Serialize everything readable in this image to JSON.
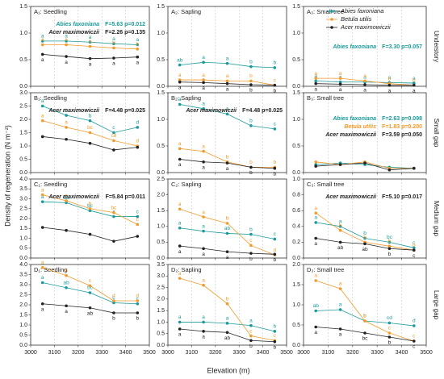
{
  "figure": {
    "ylabel": "Density of regeneration (N m⁻²)",
    "xlabel": "Elevation (m)",
    "row_labels": [
      "Understory",
      "Small gap",
      "Medium gap",
      "Large gap"
    ],
    "legend": [
      {
        "name": "Abies faxoniana",
        "color": "#1a9a9a"
      },
      {
        "name": "Betula utilis",
        "color": "#f39a2b"
      },
      {
        "name": "Acer maximowiczii",
        "color": "#222222"
      }
    ]
  },
  "chart_data": [
    {
      "type": "line",
      "title": "A₁: Seedling",
      "x": [
        3050,
        3150,
        3250,
        3350,
        3450
      ],
      "xlim": [
        3000,
        3500
      ],
      "xticks": [
        3000,
        3100,
        3200,
        3300,
        3400,
        3500
      ],
      "ylim": [
        0,
        1.5
      ],
      "yticks": [
        {
          "value": 0,
          "label": "0.0"
        },
        0.5,
        {
          "value": 1,
          "label": "1.0"
        },
        1.5
      ],
      "grid": true,
      "series": [
        {
          "values": [
            0.85,
            0.85,
            0.83,
            0.8,
            0.78
          ],
          "letters": [
            "a",
            "a",
            "a",
            "a",
            "a"
          ]
        },
        {
          "values": [
            0.78,
            0.78,
            0.75,
            0.72,
            0.7
          ],
          "letters": [
            "a",
            "a",
            "a",
            "b",
            "b"
          ]
        },
        {
          "values": [
            0.6,
            0.56,
            0.52,
            0.53,
            0.55
          ],
          "letters": [
            "a",
            "a",
            "a",
            "a",
            "a"
          ]
        }
      ],
      "stats": [
        {
          "name": "Abies faxoniana",
          "text": "F=5.63 p=0.012"
        },
        {
          "name": "Acer maximowiczii",
          "text": "F=2.26 p=0.135"
        }
      ]
    },
    {
      "type": "line",
      "title": "A₂: Sapling",
      "x": [
        3050,
        3150,
        3250,
        3350,
        3450
      ],
      "xlim": [
        3000,
        3500
      ],
      "xticks": [
        3000,
        3100,
        3200,
        3300,
        3400,
        3500
      ],
      "ylim": [
        0,
        1.5
      ],
      "yticks": [
        {
          "value": 0,
          "label": "0.0"
        },
        0.5,
        {
          "value": 1,
          "label": "1.0"
        },
        1.5
      ],
      "grid": true,
      "series": [
        {
          "values": [
            0.4,
            0.45,
            0.43,
            0.37,
            0.35
          ],
          "letters": [
            "ab",
            "a",
            "a",
            "b",
            "b"
          ]
        },
        {
          "values": [
            0.12,
            0.12,
            0.1,
            0.1,
            0.02
          ],
          "letters": [
            "a",
            "a",
            "a",
            "b",
            "c"
          ]
        },
        {
          "values": [
            0.08,
            0.07,
            0.05,
            0.03,
            0.02
          ],
          "letters": [
            "a",
            "a",
            "a",
            "b",
            "b"
          ]
        }
      ]
    },
    {
      "type": "line",
      "title": "A₃: Small tree",
      "x": [
        3050,
        3150,
        3250,
        3350,
        3450
      ],
      "xlim": [
        3000,
        3500
      ],
      "xticks": [
        3000,
        3100,
        3200,
        3300,
        3400,
        3500
      ],
      "ylim": [
        0,
        1.5
      ],
      "yticks": [
        {
          "value": 0,
          "label": "0.0"
        },
        0.5,
        {
          "value": 1,
          "label": "1.0"
        },
        1.5
      ],
      "grid": true,
      "series": [
        {
          "values": [
            0.1,
            0.08,
            0.08,
            0.07,
            0.06
          ],
          "letters": [
            "a",
            "a",
            "a",
            "a",
            "a"
          ]
        },
        {
          "values": [
            0.15,
            0.15,
            0.1,
            0.05,
            0.02
          ],
          "letters": [
            "a",
            "a",
            "a",
            "b",
            "b"
          ]
        },
        {
          "values": [
            0.05,
            0.04,
            0.03,
            0.02,
            0.02
          ],
          "letters": [
            "a",
            "a",
            "a",
            "a",
            "a"
          ]
        }
      ],
      "stats": [
        {
          "name": "Abies faxoniana",
          "text": "F=3.30 p=0.057"
        }
      ]
    },
    {
      "type": "line",
      "title": "B₁: Seedling",
      "x": [
        3050,
        3150,
        3250,
        3350,
        3450
      ],
      "xlim": [
        3000,
        3500
      ],
      "xticks": [
        3000,
        3100,
        3200,
        3300,
        3400,
        3500
      ],
      "ylim": [
        0,
        3
      ],
      "yticks": [
        {
          "value": 0,
          "label": "0.0"
        },
        0.5,
        {
          "value": 1,
          "label": "1.0"
        },
        1.5,
        {
          "value": 2,
          "label": "2.0"
        },
        2.5,
        {
          "value": 3,
          "label": "3.0"
        }
      ],
      "grid": true,
      "series": [
        {
          "values": [
            2.5,
            2.15,
            1.95,
            1.5,
            1.7
          ],
          "letters": [
            "a",
            "b",
            "b",
            "c",
            "d"
          ]
        },
        {
          "values": [
            1.95,
            1.7,
            1.5,
            1.2,
            1.0
          ],
          "letters": [
            "a",
            "a",
            "bc",
            "cd",
            "d"
          ]
        },
        {
          "values": [
            1.35,
            1.25,
            1.1,
            0.85,
            0.95
          ]
        }
      ],
      "stats": [
        {
          "name": "Acer maximowiczii",
          "text": "F=4.48 p=0.025"
        }
      ]
    },
    {
      "type": "line",
      "title": "B₂: Sapling",
      "x": [
        3050,
        3150,
        3250,
        3350,
        3450
      ],
      "xlim": [
        3000,
        3500
      ],
      "xticks": [
        3000,
        3100,
        3200,
        3300,
        3400,
        3500
      ],
      "ylim": [
        0,
        1.5
      ],
      "yticks": [
        {
          "value": 0,
          "label": "0.0"
        },
        0.5,
        {
          "value": 1,
          "label": "1.0"
        },
        1.5
      ],
      "grid": true,
      "series": [
        {
          "values": [
            1.28,
            1.2,
            1.1,
            0.88,
            0.82
          ],
          "letters": [
            "a",
            "a",
            "a",
            "b",
            "c"
          ]
        },
        {
          "values": [
            0.45,
            0.4,
            0.2,
            0.1,
            0.1
          ],
          "letters": [
            "a",
            "a",
            "b",
            "b",
            "b"
          ]
        },
        {
          "values": [
            0.25,
            0.2,
            0.18,
            0.1,
            0.08
          ],
          "letters": [
            "a",
            "a",
            "a",
            "b",
            "b"
          ]
        }
      ],
      "stats": [
        {
          "name": "Acer maximowiczii",
          "text": "F=4.48 p=0.025"
        }
      ]
    },
    {
      "type": "line",
      "title": "B₃: Small tree",
      "x": [
        3050,
        3150,
        3250,
        3350,
        3450
      ],
      "xlim": [
        3000,
        3500
      ],
      "xticks": [
        3000,
        3100,
        3200,
        3300,
        3400,
        3500
      ],
      "ylim": [
        0,
        1.5
      ],
      "yticks": [
        {
          "value": 0,
          "label": "0.0"
        },
        0.5,
        {
          "value": 1,
          "label": "1.0"
        },
        1.5
      ],
      "grid": true,
      "series": [
        {
          "values": [
            0.15,
            0.18,
            0.15,
            0.1,
            0.08
          ]
        },
        {
          "values": [
            0.2,
            0.15,
            0.2,
            0.08,
            0.08
          ]
        },
        {
          "values": [
            0.12,
            0.15,
            0.18,
            0.05,
            0.08
          ]
        }
      ],
      "stats": [
        {
          "name": "Abies faxoniana",
          "text": "F=2.63 p=0.098"
        },
        {
          "name": "Betula utilis",
          "text": "F=1.83 p=0.200"
        },
        {
          "name": "Acer maximowiczii",
          "text": "F=3.59 p=0.050"
        }
      ]
    },
    {
      "type": "line",
      "title": "C₁: Seedling",
      "x": [
        3050,
        3150,
        3250,
        3350,
        3450
      ],
      "xlim": [
        3000,
        3500
      ],
      "xticks": [
        3000,
        3100,
        3200,
        3300,
        3400,
        3500
      ],
      "ylim": [
        0,
        4
      ],
      "yticks": [
        {
          "value": 0,
          "label": "0.0"
        },
        0.5,
        {
          "value": 1,
          "label": "1.0"
        },
        1.5,
        {
          "value": 2,
          "label": "2.0"
        },
        2.5,
        {
          "value": 3,
          "label": "3.0"
        },
        3.5,
        {
          "value": 4,
          "label": "4.0"
        }
      ],
      "grid": true,
      "series": [
        {
          "values": [
            2.85,
            2.8,
            2.4,
            2.1,
            2.1
          ],
          "letters": [
            "a",
            "ab",
            "bc",
            "c",
            "c"
          ]
        },
        {
          "values": [
            3.2,
            2.9,
            2.5,
            2.3,
            1.7
          ],
          "letters": [
            "a",
            "a",
            "b",
            "bc",
            "c"
          ]
        },
        {
          "values": [
            1.55,
            1.4,
            1.2,
            0.85,
            1.1
          ]
        }
      ],
      "stats": [
        {
          "name": "Acer maximowiczii",
          "text": "F=5.84 p=0.011"
        }
      ]
    },
    {
      "type": "line",
      "title": "C₂: Sapling",
      "x": [
        3050,
        3150,
        3250,
        3350,
        3450
      ],
      "xlim": [
        3000,
        3500
      ],
      "xticks": [
        3000,
        3100,
        3200,
        3300,
        3400,
        3500
      ],
      "ylim": [
        0,
        2.5
      ],
      "yticks": [
        {
          "value": 0,
          "label": "0.0"
        },
        0.5,
        {
          "value": 1,
          "label": "1.0"
        },
        1.5,
        {
          "value": 2,
          "label": "2.0"
        },
        2.5
      ],
      "grid": true,
      "series": [
        {
          "values": [
            0.95,
            0.85,
            0.78,
            0.75,
            0.6
          ],
          "letters": [
            "a",
            "a",
            "ab",
            "b",
            "c"
          ]
        },
        {
          "values": [
            1.55,
            1.3,
            1.1,
            0.4,
            0.1
          ],
          "letters": [
            "a",
            "a",
            "b",
            "c",
            "d"
          ]
        },
        {
          "values": [
            0.38,
            0.3,
            0.2,
            0.15,
            0.12
          ],
          "letters": [
            "a",
            "a",
            "a",
            "b",
            "b"
          ]
        }
      ]
    },
    {
      "type": "line",
      "title": "C₃: Small tree",
      "x": [
        3050,
        3150,
        3250,
        3350,
        3450
      ],
      "xlim": [
        3000,
        3500
      ],
      "xticks": [
        3000,
        3100,
        3200,
        3300,
        3400,
        3500
      ],
      "ylim": [
        0,
        1
      ],
      "yticks": [
        {
          "value": 0,
          "label": "0.0"
        },
        0.2,
        0.4,
        0.6,
        0.8,
        {
          "value": 1,
          "label": "1.0"
        }
      ],
      "grid": true,
      "series": [
        {
          "values": [
            0.45,
            0.4,
            0.25,
            0.2,
            0.13
          ],
          "letters": [
            "a",
            "a",
            "b",
            "bc",
            "c"
          ]
        },
        {
          "values": [
            0.57,
            0.35,
            0.2,
            0.15,
            0.1
          ],
          "letters": [
            "a",
            "b",
            "b",
            "b",
            "b"
          ]
        },
        {
          "values": [
            0.25,
            0.2,
            0.18,
            0.12,
            0.1
          ],
          "letters": [
            "a",
            "ab",
            "ab",
            "b",
            "c"
          ]
        }
      ],
      "stats": [
        {
          "name": "Acer maximowiczii",
          "text": "F=5.10 p=0.017"
        }
      ]
    },
    {
      "type": "line",
      "title": "D₁: Seedling",
      "x": [
        3050,
        3150,
        3250,
        3350,
        3450
      ],
      "xlim": [
        3000,
        3500
      ],
      "xticks": [
        3000,
        3100,
        3200,
        3300,
        3400,
        3500
      ],
      "ylim": [
        0,
        4
      ],
      "yticks": [
        {
          "value": 0,
          "label": "0.0"
        },
        0.5,
        {
          "value": 1,
          "label": "1.0"
        },
        1.5,
        {
          "value": 2,
          "label": "2.0"
        },
        2.5,
        {
          "value": 3,
          "label": "3.0"
        },
        3.5,
        {
          "value": 4,
          "label": "4.0"
        }
      ],
      "grid": true,
      "series": [
        {
          "values": [
            3.1,
            2.85,
            2.6,
            2.1,
            2.05
          ],
          "letters": [
            "a",
            "ab",
            "bc",
            "c",
            "c"
          ]
        },
        {
          "values": [
            3.85,
            3.45,
            2.95,
            2.2,
            2.2
          ],
          "letters": [
            "a",
            "b",
            "c",
            "d",
            "d"
          ]
        },
        {
          "values": [
            2.05,
            1.95,
            1.85,
            1.6,
            1.6
          ],
          "letters": [
            "a",
            "a",
            "ab",
            "b",
            "b"
          ]
        }
      ]
    },
    {
      "type": "line",
      "title": "D₂: Sapling",
      "x": [
        3050,
        3150,
        3250,
        3350,
        3450
      ],
      "xlim": [
        3000,
        3500
      ],
      "xticks": [
        3000,
        3100,
        3200,
        3300,
        3400,
        3500
      ],
      "ylim": [
        0,
        3.5
      ],
      "yticks": [
        {
          "value": 0,
          "label": "0.0"
        },
        0.5,
        {
          "value": 1,
          "label": "1.0"
        },
        1.5,
        {
          "value": 2,
          "label": "2.0"
        },
        2.5,
        {
          "value": 3,
          "label": "3.0"
        },
        3.5
      ],
      "grid": true,
      "series": [
        {
          "values": [
            1.0,
            1.0,
            0.95,
            0.85,
            0.6
          ],
          "letters": [
            "a",
            "a",
            "a",
            "a",
            "b"
          ]
        },
        {
          "values": [
            2.9,
            2.6,
            1.8,
            0.4,
            0.2
          ],
          "letters": [
            "a",
            "a",
            "b",
            "c",
            "c"
          ]
        },
        {
          "values": [
            0.7,
            0.6,
            0.55,
            0.2,
            0.15
          ],
          "letters": [
            "a",
            "a",
            "ab",
            "b",
            "b"
          ]
        }
      ]
    },
    {
      "type": "line",
      "title": "D₃: Small tree",
      "x": [
        3050,
        3150,
        3250,
        3350,
        3450
      ],
      "xlim": [
        3000,
        3500
      ],
      "xticks": [
        3000,
        3100,
        3200,
        3300,
        3400,
        3500
      ],
      "ylim": [
        0,
        2
      ],
      "yticks": [
        {
          "value": 0,
          "label": "0.0"
        },
        0.5,
        {
          "value": 1,
          "label": "1.0"
        },
        1.5,
        {
          "value": 2,
          "label": "2.0"
        }
      ],
      "grid": true,
      "series": [
        {
          "values": [
            0.85,
            0.88,
            0.6,
            0.55,
            0.48
          ],
          "letters": [
            "ab",
            "a",
            "b",
            "cd",
            "d"
          ]
        },
        {
          "values": [
            1.6,
            1.4,
            0.6,
            0.3,
            0.1
          ],
          "letters": [
            "a",
            "a",
            "b",
            "c",
            "c"
          ]
        },
        {
          "values": [
            0.45,
            0.4,
            0.3,
            0.2,
            0.1
          ],
          "letters": [
            "a",
            "a",
            "bc",
            "b",
            "c"
          ]
        }
      ]
    }
  ]
}
